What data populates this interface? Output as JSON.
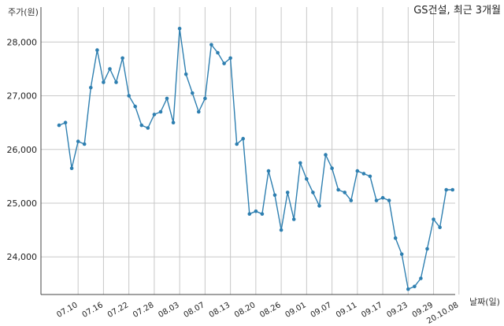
{
  "chart_data": {
    "type": "line",
    "title": "GS건설, 최근 3개월",
    "ylabel": "주가(원)",
    "xlabel": "날짜(일)",
    "ylim": [
      23300,
      28650
    ],
    "yticks": [
      24000,
      25000,
      26000,
      27000,
      28000
    ],
    "ytick_labels": [
      "24,000",
      "25,000",
      "26,000",
      "27,000",
      "28,000"
    ],
    "grid": true,
    "x_tick_labels": [
      "07.10",
      "07.16",
      "07.22",
      "07.28",
      "08.03",
      "08.07",
      "08.13",
      "08.20",
      "08.26",
      "09.01",
      "09.07",
      "09.11",
      "09.17",
      "09.23",
      "09.29",
      "20.10.08"
    ],
    "x_tick_index": [
      3,
      7,
      11,
      15,
      19,
      23,
      27,
      31,
      35,
      39,
      43,
      47,
      51,
      55,
      59,
      63
    ],
    "values": [
      26450,
      26500,
      25650,
      26150,
      26100,
      27150,
      27850,
      27250,
      27500,
      27250,
      27700,
      27000,
      26800,
      26450,
      26400,
      26650,
      26700,
      26950,
      26500,
      28250,
      27400,
      27050,
      26700,
      26950,
      27950,
      27800,
      27600,
      27700,
      26100,
      26200,
      24800,
      24850,
      24800,
      25600,
      25150,
      24500,
      25200,
      24700,
      25750,
      25450,
      25200,
      24950,
      25900,
      25650,
      25250,
      25200,
      25050,
      25600,
      25550,
      25500,
      25050,
      25100,
      25050,
      24350,
      24050,
      23400,
      23450,
      23600,
      24150,
      24700,
      24550,
      25250,
      25250
    ]
  }
}
